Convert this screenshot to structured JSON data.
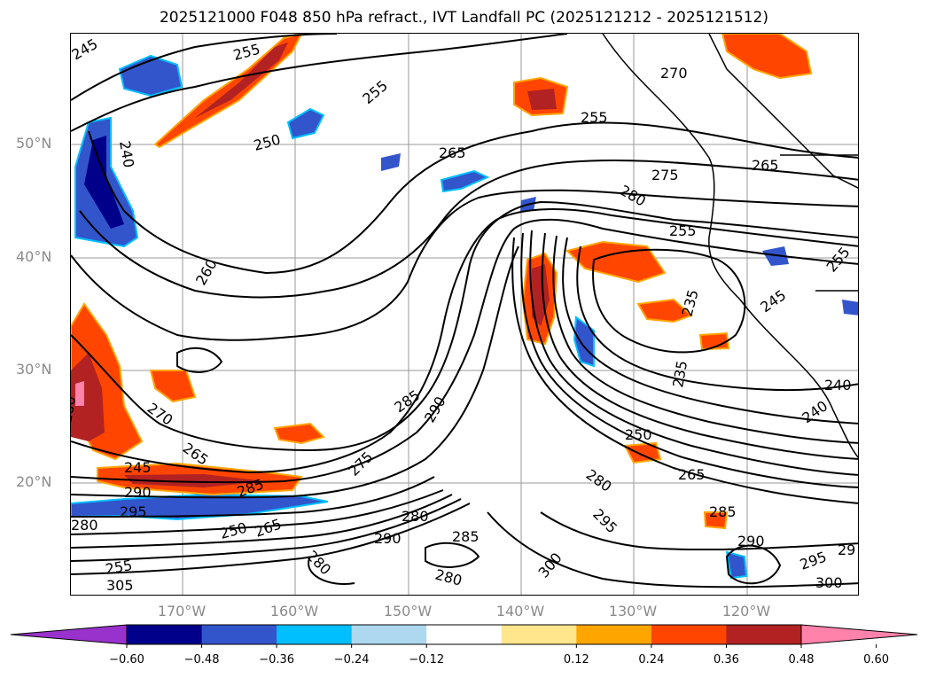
{
  "title": "2025121000 F048 850 hPa refract., IVT Landfall PC (2025121212 - 2025121512)",
  "axes": {
    "latitude_labels": [
      "50°N",
      "40°N",
      "30°N",
      "20°N"
    ],
    "longitude_labels": [
      "170°W",
      "160°W",
      "150°W",
      "140°W",
      "130°W",
      "120°W"
    ]
  },
  "colorbar": {
    "tick_labels": [
      "−0.60",
      "−0.48",
      "−0.36",
      "−0.24",
      "−0.12",
      "0.12",
      "0.24",
      "0.36",
      "0.48",
      "0.60"
    ],
    "colors": [
      "#9932cc",
      "#00008b",
      "#3355cc",
      "#00bfff",
      "#add8f0",
      "#ffffff",
      "#ffe68c",
      "#ffa500",
      "#ff4500",
      "#b22222",
      "#ff82ab"
    ]
  },
  "contour_labels": {
    "c245": "245",
    "c255": "255",
    "c250": "250",
    "c240": "240",
    "c260": "260",
    "c265": "265",
    "c270": "270",
    "c275": "275",
    "c280": "280",
    "c285": "285",
    "c290": "290",
    "c295": "295",
    "c300": "300",
    "c305": "305",
    "c235": "235",
    "c29": "29"
  },
  "colors": {
    "contour": "#000000",
    "grid": "#999999",
    "coast": "#000000"
  }
}
